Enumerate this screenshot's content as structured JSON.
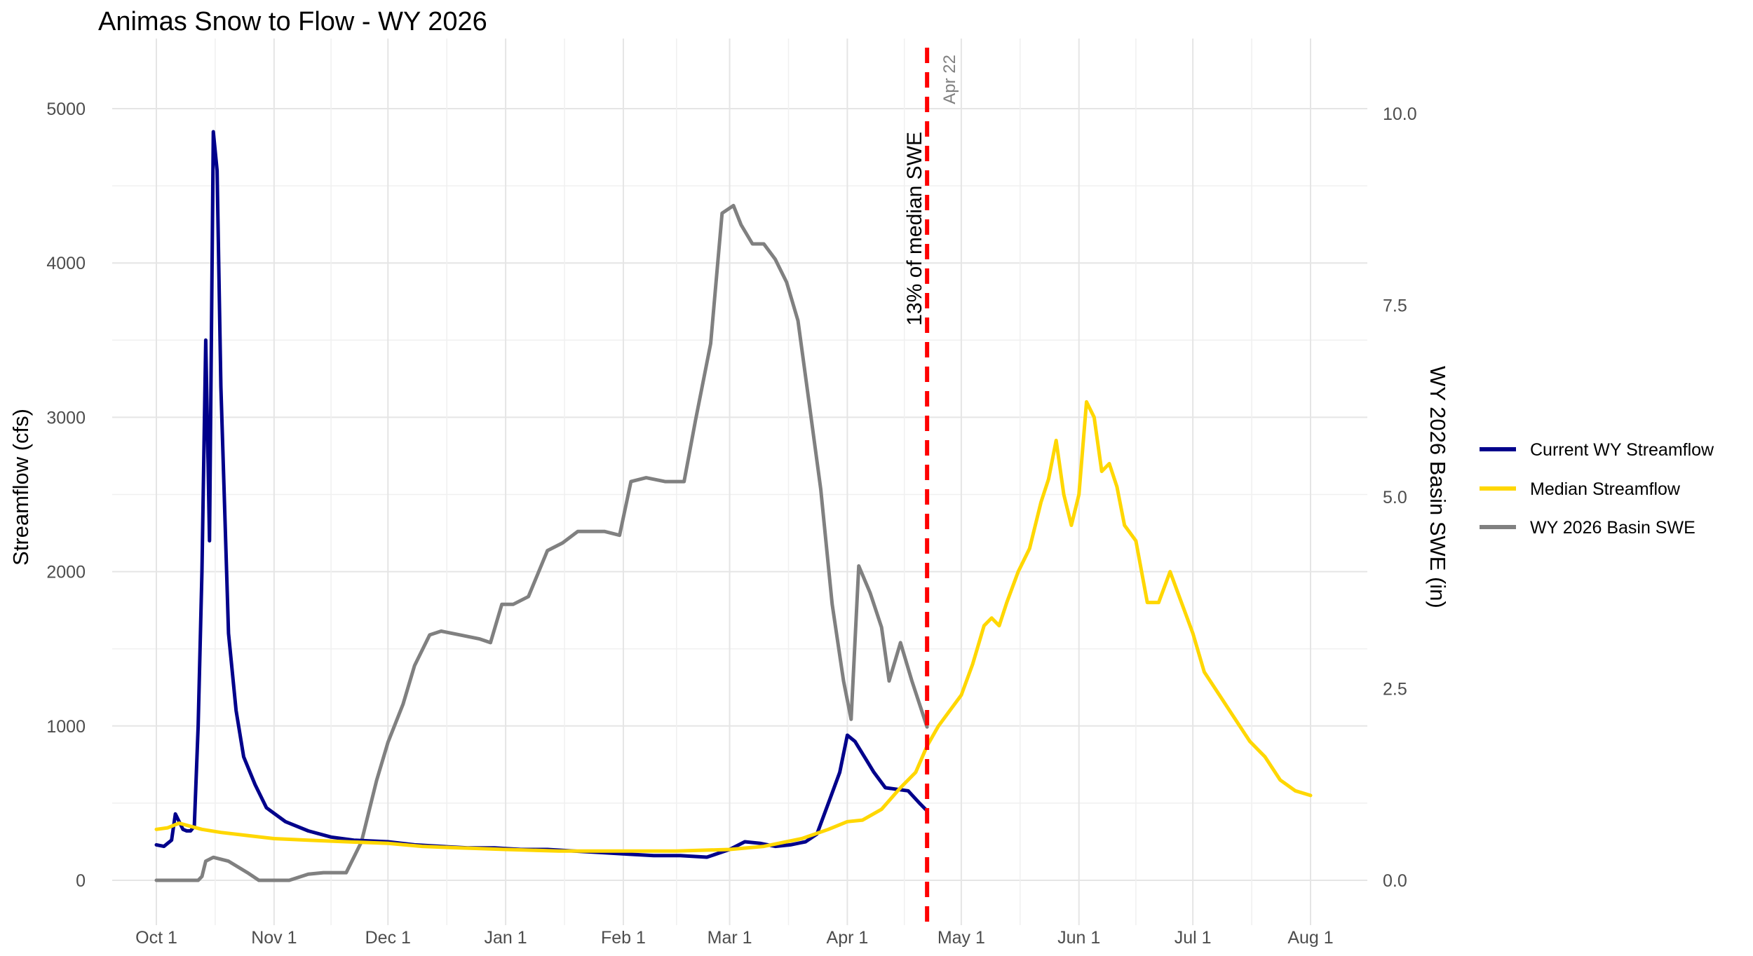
{
  "title": "Animas Snow to Flow - WY 2026",
  "chart_data": {
    "type": "line",
    "title": "Animas Snow to Flow - WY 2026",
    "ylabel": "Streamflow (cfs)",
    "y2label": "WY 2026 Basin SWE (in)",
    "ylim": [
      0,
      5000
    ],
    "y2lim": [
      0,
      10
    ],
    "yticks": [
      "0",
      "1000",
      "2000",
      "3000",
      "4000",
      "5000"
    ],
    "y2ticks": [
      "0.0",
      "2.5",
      "5.0",
      "7.5",
      "10.0"
    ],
    "xticks": [
      "Oct 1",
      "Nov 1",
      "Dec 1",
      "Jan 1",
      "Feb 1",
      "Mar 1",
      "Apr 1",
      "May 1",
      "Jun 1",
      "Jul 1",
      "Aug 1"
    ],
    "grid": true,
    "legend_position": "right",
    "annotations": {
      "vline_date": "Apr 22",
      "vline_label": "13% of median SWE",
      "vline_color": "#ff0000"
    },
    "series": [
      {
        "name": "Current WY Streamflow",
        "axis": "left",
        "color": "#00008b",
        "points": [
          [
            "Oct 1",
            230
          ],
          [
            "Oct 3",
            220
          ],
          [
            "Oct 5",
            260
          ],
          [
            "Oct 6",
            430
          ],
          [
            "Oct 7",
            380
          ],
          [
            "Oct 8",
            330
          ],
          [
            "Oct 9",
            320
          ],
          [
            "Oct 10",
            320
          ],
          [
            "Oct 11",
            350
          ],
          [
            "Oct 12",
            1000
          ],
          [
            "Oct 13",
            2000
          ],
          [
            "Oct 14",
            3500
          ],
          [
            "Oct 15",
            2200
          ],
          [
            "Oct 16",
            4850
          ],
          [
            "Oct 17",
            4600
          ],
          [
            "Oct 18",
            3200
          ],
          [
            "Oct 20",
            1600
          ],
          [
            "Oct 22",
            1100
          ],
          [
            "Oct 24",
            800
          ],
          [
            "Oct 27",
            620
          ],
          [
            "Oct 30",
            470
          ],
          [
            "Nov 4",
            380
          ],
          [
            "Nov 10",
            320
          ],
          [
            "Nov 16",
            280
          ],
          [
            "Nov 22",
            260
          ],
          [
            "Dec 1",
            250
          ],
          [
            "Dec 8",
            230
          ],
          [
            "Dec 15",
            220
          ],
          [
            "Dec 22",
            210
          ],
          [
            "Dec 29",
            210
          ],
          [
            "Jan 5",
            200
          ],
          [
            "Jan 12",
            200
          ],
          [
            "Jan 19",
            190
          ],
          [
            "Jan 26",
            180
          ],
          [
            "Feb 2",
            170
          ],
          [
            "Feb 9",
            160
          ],
          [
            "Feb 16",
            160
          ],
          [
            "Feb 23",
            150
          ],
          [
            "Mar 1",
            200
          ],
          [
            "Mar 5",
            250
          ],
          [
            "Mar 9",
            240
          ],
          [
            "Mar 13",
            220
          ],
          [
            "Mar 17",
            230
          ],
          [
            "Mar 21",
            250
          ],
          [
            "Mar 24",
            300
          ],
          [
            "Mar 27",
            500
          ],
          [
            "Mar 30",
            700
          ],
          [
            "Apr 1",
            940
          ],
          [
            "Apr 3",
            900
          ],
          [
            "Apr 6",
            780
          ],
          [
            "Apr 8",
            700
          ],
          [
            "Apr 11",
            600
          ],
          [
            "Apr 14",
            590
          ],
          [
            "Apr 17",
            580
          ],
          [
            "Apr 20",
            500
          ],
          [
            "Apr 22",
            450
          ]
        ]
      },
      {
        "name": "Median Streamflow",
        "axis": "left",
        "color": "#ffd700",
        "points": [
          [
            "Oct 1",
            330
          ],
          [
            "Oct 4",
            340
          ],
          [
            "Oct 7",
            370
          ],
          [
            "Oct 10",
            350
          ],
          [
            "Oct 13",
            330
          ],
          [
            "Oct 18",
            310
          ],
          [
            "Oct 25",
            290
          ],
          [
            "Nov 1",
            270
          ],
          [
            "Nov 10",
            260
          ],
          [
            "Nov 20",
            250
          ],
          [
            "Dec 1",
            240
          ],
          [
            "Dec 10",
            220
          ],
          [
            "Dec 20",
            210
          ],
          [
            "Jan 1",
            200
          ],
          [
            "Jan 15",
            190
          ],
          [
            "Feb 1",
            190
          ],
          [
            "Feb 15",
            190
          ],
          [
            "Mar 1",
            200
          ],
          [
            "Mar 10",
            220
          ],
          [
            "Mar 20",
            270
          ],
          [
            "Mar 27",
            330
          ],
          [
            "Apr 1",
            380
          ],
          [
            "Apr 5",
            390
          ],
          [
            "Apr 10",
            460
          ],
          [
            "Apr 15",
            600
          ],
          [
            "Apr 19",
            700
          ],
          [
            "Apr 22",
            870
          ],
          [
            "Apr 25",
            1000
          ],
          [
            "Apr 28",
            1100
          ],
          [
            "May 1",
            1200
          ],
          [
            "May 4",
            1400
          ],
          [
            "May 7",
            1650
          ],
          [
            "May 9",
            1700
          ],
          [
            "May 11",
            1650
          ],
          [
            "May 13",
            1800
          ],
          [
            "May 16",
            2000
          ],
          [
            "May 19",
            2150
          ],
          [
            "May 22",
            2450
          ],
          [
            "May 24",
            2600
          ],
          [
            "May 26",
            2850
          ],
          [
            "May 28",
            2500
          ],
          [
            "May 30",
            2300
          ],
          [
            "Jun 1",
            2500
          ],
          [
            "Jun 3",
            3100
          ],
          [
            "Jun 5",
            3000
          ],
          [
            "Jun 7",
            2650
          ],
          [
            "Jun 9",
            2700
          ],
          [
            "Jun 11",
            2550
          ],
          [
            "Jun 13",
            2300
          ],
          [
            "Jun 16",
            2200
          ],
          [
            "Jun 19",
            1800
          ],
          [
            "Jun 22",
            1800
          ],
          [
            "Jun 25",
            2000
          ],
          [
            "Jun 28",
            1800
          ],
          [
            "Jul 1",
            1600
          ],
          [
            "Jul 4",
            1350
          ],
          [
            "Jul 8",
            1200
          ],
          [
            "Jul 12",
            1050
          ],
          [
            "Jul 16",
            900
          ],
          [
            "Jul 20",
            800
          ],
          [
            "Jul 24",
            650
          ],
          [
            "Jul 28",
            580
          ],
          [
            "Aug 1",
            550
          ]
        ]
      },
      {
        "name": "WY 2026 Basin SWE",
        "axis": "right",
        "color": "#808080",
        "points": [
          [
            "Oct 1",
            0.0
          ],
          [
            "Oct 12",
            0.0
          ],
          [
            "Oct 13",
            0.05
          ],
          [
            "Oct 14",
            0.25
          ],
          [
            "Oct 16",
            0.3
          ],
          [
            "Oct 20",
            0.25
          ],
          [
            "Oct 25",
            0.1
          ],
          [
            "Oct 28",
            0.0
          ],
          [
            "Nov 5",
            0.0
          ],
          [
            "Nov 10",
            0.08
          ],
          [
            "Nov 14",
            0.1
          ],
          [
            "Nov 20",
            0.1
          ],
          [
            "Nov 24",
            0.5
          ],
          [
            "Nov 28",
            1.3
          ],
          [
            "Dec 1",
            1.8
          ],
          [
            "Dec 5",
            2.3
          ],
          [
            "Dec 8",
            2.8
          ],
          [
            "Dec 12",
            3.2
          ],
          [
            "Dec 15",
            3.25
          ],
          [
            "Dec 20",
            3.2
          ],
          [
            "Dec 25",
            3.15
          ],
          [
            "Dec 28",
            3.1
          ],
          [
            "Dec 31",
            3.6
          ],
          [
            "Jan 3",
            3.6
          ],
          [
            "Jan 7",
            3.7
          ],
          [
            "Jan 12",
            4.3
          ],
          [
            "Jan 16",
            4.4
          ],
          [
            "Jan 20",
            4.55
          ],
          [
            "Jan 27",
            4.55
          ],
          [
            "Jan 31",
            4.5
          ],
          [
            "Feb 3",
            5.2
          ],
          [
            "Feb 7",
            5.25
          ],
          [
            "Feb 12",
            5.2
          ],
          [
            "Feb 17",
            5.2
          ],
          [
            "Feb 20",
            6.0
          ],
          [
            "Feb 24",
            7.0
          ],
          [
            "Feb 27",
            8.7
          ],
          [
            "Mar 2",
            8.8
          ],
          [
            "Mar 4",
            8.55
          ],
          [
            "Mar 7",
            8.3
          ],
          [
            "Mar 10",
            8.3
          ],
          [
            "Mar 13",
            8.1
          ],
          [
            "Mar 16",
            7.8
          ],
          [
            "Mar 19",
            7.3
          ],
          [
            "Mar 22",
            6.2
          ],
          [
            "Mar 25",
            5.1
          ],
          [
            "Mar 28",
            3.6
          ],
          [
            "Mar 31",
            2.6
          ],
          [
            "Apr 2",
            2.1
          ],
          [
            "Apr 4",
            4.1
          ],
          [
            "Apr 7",
            3.75
          ],
          [
            "Apr 10",
            3.3
          ],
          [
            "Apr 12",
            2.6
          ],
          [
            "Apr 15",
            3.1
          ],
          [
            "Apr 18",
            2.6
          ],
          [
            "Apr 22",
            2.0
          ]
        ]
      }
    ]
  }
}
